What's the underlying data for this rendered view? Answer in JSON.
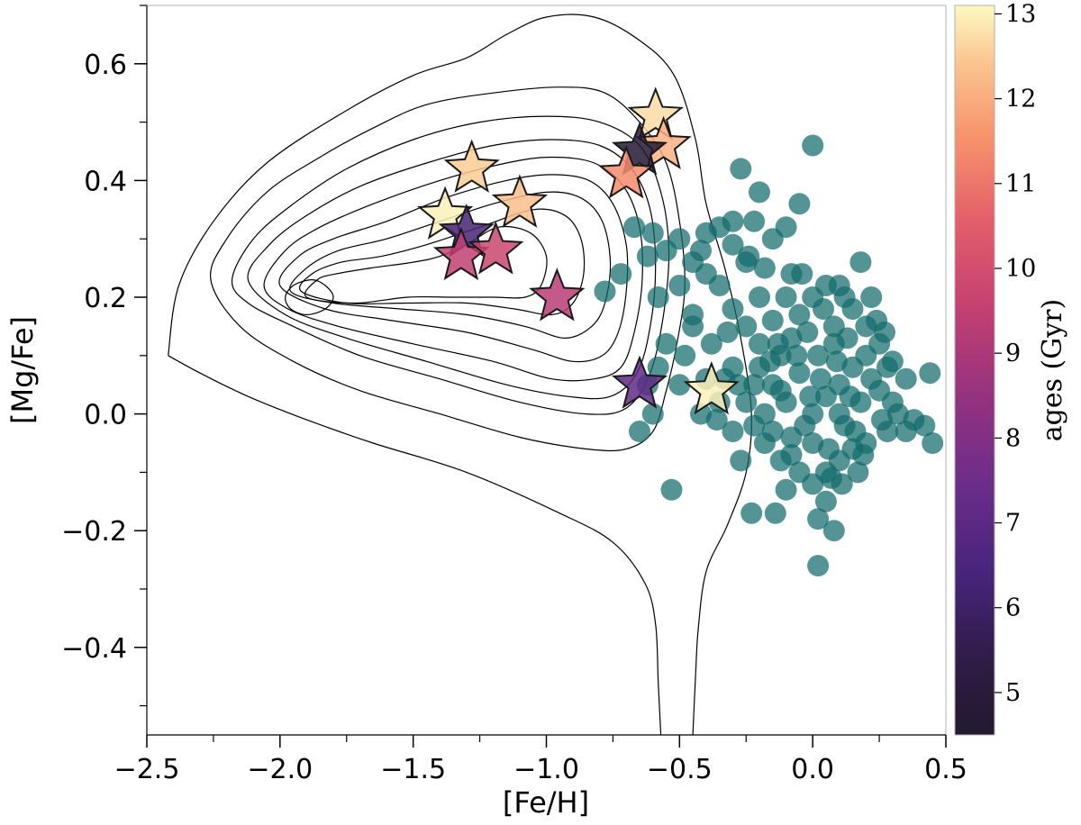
{
  "chart_data": {
    "type": "scatter",
    "xlabel": "[Fe/H]",
    "ylabel": "[Mg/Fe]",
    "xlim": [
      -2.5,
      0.5
    ],
    "ylim": [
      -0.55,
      0.7
    ],
    "x_ticks": [
      -2.5,
      -2.0,
      -1.5,
      -1.0,
      -0.5,
      0.0,
      0.5
    ],
    "x_tick_labels": [
      "−2.5",
      "−2.0",
      "−1.5",
      "−1.0",
      "−0.5",
      "0.0",
      "0.5"
    ],
    "y_ticks": [
      -0.4,
      -0.2,
      0.0,
      0.2,
      0.4,
      0.6
    ],
    "y_tick_labels": [
      "−0.4",
      "−0.2",
      "0.0",
      "0.2",
      "0.4",
      "0.6"
    ],
    "colorbar": {
      "label": "ages (Gyr)",
      "range": [
        4.5,
        13.1
      ],
      "ticks": [
        5,
        6,
        7,
        8,
        9,
        10,
        11,
        12,
        13
      ],
      "tick_labels": [
        "5",
        "6",
        "7",
        "8",
        "9",
        "10",
        "11",
        "12",
        "13"
      ],
      "colormap": "magma"
    },
    "teal_color": "#146b6b",
    "contour_color": "#000000",
    "contours": [
      [
        [
          -2.42,
          0.1
        ],
        [
          -2.38,
          0.22
        ],
        [
          -2.25,
          0.33
        ],
        [
          -2.05,
          0.43
        ],
        [
          -1.75,
          0.52
        ],
        [
          -1.5,
          0.58
        ],
        [
          -1.3,
          0.61
        ],
        [
          -1.15,
          0.65
        ],
        [
          -1.0,
          0.68
        ],
        [
          -0.82,
          0.68
        ],
        [
          -0.65,
          0.64
        ],
        [
          -0.52,
          0.58
        ],
        [
          -0.44,
          0.47
        ],
        [
          -0.4,
          0.36
        ],
        [
          -0.33,
          0.25
        ],
        [
          -0.27,
          0.13
        ],
        [
          -0.23,
          0.0
        ],
        [
          -0.25,
          -0.1
        ],
        [
          -0.32,
          -0.19
        ],
        [
          -0.4,
          -0.27
        ],
        [
          -0.43,
          -0.37
        ],
        [
          -0.44,
          -0.45
        ],
        [
          -0.45,
          -0.55
        ]
      ],
      [
        [
          -0.57,
          -0.55
        ],
        [
          -0.58,
          -0.46
        ],
        [
          -0.59,
          -0.36
        ],
        [
          -0.63,
          -0.29
        ],
        [
          -0.75,
          -0.22
        ],
        [
          -0.95,
          -0.17
        ],
        [
          -1.3,
          -0.1
        ],
        [
          -1.65,
          -0.05
        ],
        [
          -1.9,
          -0.01
        ],
        [
          -2.12,
          0.03
        ],
        [
          -2.3,
          0.07
        ],
        [
          -2.42,
          0.1
        ]
      ],
      [
        [
          -2.26,
          0.23
        ],
        [
          -2.2,
          0.3
        ],
        [
          -2.05,
          0.38
        ],
        [
          -1.85,
          0.44
        ],
        [
          -1.65,
          0.49
        ],
        [
          -1.45,
          0.53
        ],
        [
          -1.2,
          0.55
        ],
        [
          -0.95,
          0.56
        ],
        [
          -0.78,
          0.55
        ],
        [
          -0.65,
          0.5
        ],
        [
          -0.55,
          0.43
        ],
        [
          -0.5,
          0.33
        ],
        [
          -0.48,
          0.22
        ],
        [
          -0.51,
          0.12
        ],
        [
          -0.55,
          0.04
        ],
        [
          -0.6,
          -0.03
        ],
        [
          -0.7,
          -0.06
        ],
        [
          -0.85,
          -0.06
        ],
        [
          -1.1,
          -0.04
        ],
        [
          -1.4,
          0.0
        ],
        [
          -1.7,
          0.04
        ],
        [
          -1.95,
          0.09
        ],
        [
          -2.15,
          0.15
        ],
        [
          -2.26,
          0.23
        ]
      ],
      [
        [
          -2.18,
          0.23
        ],
        [
          -2.1,
          0.3
        ],
        [
          -1.95,
          0.36
        ],
        [
          -1.75,
          0.42
        ],
        [
          -1.5,
          0.47
        ],
        [
          -1.25,
          0.5
        ],
        [
          -1.0,
          0.51
        ],
        [
          -0.8,
          0.5
        ],
        [
          -0.65,
          0.46
        ],
        [
          -0.57,
          0.38
        ],
        [
          -0.54,
          0.28
        ],
        [
          -0.56,
          0.17
        ],
        [
          -0.61,
          0.07
        ],
        [
          -0.7,
          0.01
        ],
        [
          -0.85,
          0.0
        ],
        [
          -1.1,
          0.02
        ],
        [
          -1.4,
          0.06
        ],
        [
          -1.7,
          0.1
        ],
        [
          -1.95,
          0.15
        ],
        [
          -2.12,
          0.19
        ],
        [
          -2.18,
          0.23
        ]
      ],
      [
        [
          -2.12,
          0.23
        ],
        [
          -2.04,
          0.29
        ],
        [
          -1.9,
          0.34
        ],
        [
          -1.7,
          0.39
        ],
        [
          -1.45,
          0.43
        ],
        [
          -1.2,
          0.46
        ],
        [
          -0.98,
          0.47
        ],
        [
          -0.8,
          0.46
        ],
        [
          -0.68,
          0.42
        ],
        [
          -0.61,
          0.35
        ],
        [
          -0.59,
          0.25
        ],
        [
          -0.61,
          0.15
        ],
        [
          -0.66,
          0.07
        ],
        [
          -0.76,
          0.03
        ],
        [
          -0.92,
          0.03
        ],
        [
          -1.15,
          0.05
        ],
        [
          -1.45,
          0.09
        ],
        [
          -1.75,
          0.13
        ],
        [
          -1.98,
          0.17
        ],
        [
          -2.12,
          0.23
        ]
      ],
      [
        [
          -2.06,
          0.22
        ],
        [
          -1.98,
          0.28
        ],
        [
          -1.85,
          0.32
        ],
        [
          -1.65,
          0.36
        ],
        [
          -1.4,
          0.4
        ],
        [
          -1.15,
          0.43
        ],
        [
          -0.98,
          0.44
        ],
        [
          -0.82,
          0.43
        ],
        [
          -0.71,
          0.39
        ],
        [
          -0.65,
          0.32
        ],
        [
          -0.64,
          0.23
        ],
        [
          -0.67,
          0.14
        ],
        [
          -0.72,
          0.08
        ],
        [
          -0.82,
          0.06
        ],
        [
          -0.98,
          0.06
        ],
        [
          -1.2,
          0.09
        ],
        [
          -1.5,
          0.12
        ],
        [
          -1.78,
          0.15
        ],
        [
          -1.97,
          0.18
        ],
        [
          -2.06,
          0.22
        ]
      ],
      [
        [
          -2.0,
          0.22
        ],
        [
          -1.93,
          0.27
        ],
        [
          -1.8,
          0.3
        ],
        [
          -1.6,
          0.33
        ],
        [
          -1.38,
          0.37
        ],
        [
          -1.15,
          0.4
        ],
        [
          -0.98,
          0.41
        ],
        [
          -0.84,
          0.4
        ],
        [
          -0.75,
          0.36
        ],
        [
          -0.7,
          0.29
        ],
        [
          -0.7,
          0.21
        ],
        [
          -0.73,
          0.14
        ],
        [
          -0.79,
          0.1
        ],
        [
          -0.9,
          0.09
        ],
        [
          -1.05,
          0.11
        ],
        [
          -1.3,
          0.14
        ],
        [
          -1.58,
          0.16
        ],
        [
          -1.83,
          0.18
        ],
        [
          -2.0,
          0.22
        ]
      ],
      [
        [
          -1.96,
          0.21
        ],
        [
          -1.9,
          0.25
        ],
        [
          -1.78,
          0.28
        ],
        [
          -1.6,
          0.3
        ],
        [
          -1.4,
          0.33
        ],
        [
          -1.2,
          0.36
        ],
        [
          -1.0,
          0.38
        ],
        [
          -0.87,
          0.37
        ],
        [
          -0.79,
          0.33
        ],
        [
          -0.76,
          0.26
        ],
        [
          -0.78,
          0.19
        ],
        [
          -0.83,
          0.15
        ],
        [
          -0.93,
          0.13
        ],
        [
          -1.08,
          0.15
        ],
        [
          -1.3,
          0.17
        ],
        [
          -1.55,
          0.18
        ],
        [
          -1.8,
          0.19
        ],
        [
          -1.96,
          0.21
        ]
      ],
      [
        [
          -1.92,
          0.21
        ],
        [
          -1.88,
          0.24
        ],
        [
          -1.77,
          0.26
        ],
        [
          -1.62,
          0.27
        ],
        [
          -1.45,
          0.29
        ],
        [
          -1.25,
          0.32
        ],
        [
          -1.05,
          0.35
        ],
        [
          -0.93,
          0.34
        ],
        [
          -0.87,
          0.3
        ],
        [
          -0.86,
          0.24
        ],
        [
          -0.9,
          0.19
        ],
        [
          -0.98,
          0.17
        ],
        [
          -1.12,
          0.18
        ],
        [
          -1.3,
          0.19
        ],
        [
          -1.52,
          0.19
        ],
        [
          -1.75,
          0.19
        ],
        [
          -1.92,
          0.21
        ]
      ],
      [
        [
          -1.9,
          0.2
        ],
        [
          -1.86,
          0.23
        ],
        [
          -1.79,
          0.24
        ],
        [
          -1.66,
          0.25
        ],
        [
          -1.5,
          0.26
        ],
        [
          -1.4,
          0.27
        ],
        [
          -1.3,
          0.29
        ],
        [
          -1.18,
          0.32
        ],
        [
          -1.06,
          0.31
        ],
        [
          -1.0,
          0.27
        ],
        [
          -1.02,
          0.22
        ],
        [
          -1.08,
          0.2
        ],
        [
          -1.2,
          0.2
        ],
        [
          -1.35,
          0.2
        ],
        [
          -1.52,
          0.2
        ],
        [
          -1.72,
          0.19
        ],
        [
          -1.9,
          0.2
        ]
      ],
      [
        [
          -1.98,
          0.2
        ],
        [
          -1.95,
          0.22
        ],
        [
          -1.88,
          0.23
        ],
        [
          -1.83,
          0.22
        ],
        [
          -1.8,
          0.2
        ],
        [
          -1.83,
          0.18
        ],
        [
          -1.9,
          0.17
        ],
        [
          -1.96,
          0.18
        ],
        [
          -1.98,
          0.2
        ]
      ]
    ],
    "scatter_points": [
      [
        0.0,
        0.46
      ],
      [
        -0.27,
        0.42
      ],
      [
        -0.05,
        0.36
      ],
      [
        -0.2,
        0.38
      ],
      [
        -0.3,
        0.33
      ],
      [
        -0.22,
        0.33
      ],
      [
        -0.35,
        0.32
      ],
      [
        -0.1,
        0.32
      ],
      [
        -0.4,
        0.31
      ],
      [
        -0.5,
        0.3
      ],
      [
        -0.6,
        0.31
      ],
      [
        -0.67,
        0.32
      ],
      [
        -0.42,
        0.28
      ],
      [
        -0.3,
        0.29
      ],
      [
        -0.15,
        0.3
      ],
      [
        -0.45,
        0.26
      ],
      [
        -0.55,
        0.28
      ],
      [
        -0.62,
        0.27
      ],
      [
        -0.72,
        0.24
      ],
      [
        -0.78,
        0.21
      ],
      [
        -0.5,
        0.22
      ],
      [
        -0.58,
        0.2
      ],
      [
        -0.4,
        0.24
      ],
      [
        -0.35,
        0.22
      ],
      [
        -0.25,
        0.26
      ],
      [
        -0.18,
        0.25
      ],
      [
        -0.08,
        0.24
      ],
      [
        0.05,
        0.22
      ],
      [
        0.18,
        0.26
      ],
      [
        0.12,
        0.2
      ],
      [
        -0.2,
        0.2
      ],
      [
        -0.3,
        0.18
      ],
      [
        -0.45,
        0.17
      ],
      [
        -0.55,
        0.12
      ],
      [
        -0.48,
        0.1
      ],
      [
        -0.5,
        0.05
      ],
      [
        -0.58,
        0.08
      ],
      [
        -0.62,
        0.05
      ],
      [
        -0.6,
        0.0
      ],
      [
        -0.65,
        -0.03
      ],
      [
        -0.45,
        0.15
      ],
      [
        -0.38,
        0.12
      ],
      [
        -0.32,
        0.14
      ],
      [
        -0.15,
        0.16
      ],
      [
        -0.05,
        0.17
      ],
      [
        0.0,
        0.2
      ],
      [
        0.08,
        0.15
      ],
      [
        0.15,
        0.18
      ],
      [
        0.2,
        0.15
      ],
      [
        0.25,
        0.12
      ],
      [
        0.3,
        0.09
      ],
      [
        0.35,
        0.06
      ],
      [
        0.32,
        0.0
      ],
      [
        0.28,
        -0.03
      ],
      [
        0.38,
        -0.01
      ],
      [
        0.42,
        -0.02
      ],
      [
        0.2,
        -0.05
      ],
      [
        0.15,
        -0.06
      ],
      [
        0.1,
        -0.08
      ],
      [
        0.05,
        -0.1
      ],
      [
        0.0,
        -0.12
      ],
      [
        -0.05,
        -0.1
      ],
      [
        -0.12,
        -0.08
      ],
      [
        -0.18,
        -0.05
      ],
      [
        -0.22,
        -0.02
      ],
      [
        -0.25,
        0.02
      ],
      [
        -0.28,
        0.05
      ],
      [
        -0.3,
        0.08
      ],
      [
        -0.2,
        0.08
      ],
      [
        -0.15,
        0.05
      ],
      [
        -0.1,
        0.02
      ],
      [
        0.0,
        0.0
      ],
      [
        0.05,
        0.03
      ],
      [
        0.1,
        0.05
      ],
      [
        0.15,
        0.08
      ],
      [
        0.2,
        0.1
      ],
      [
        0.25,
        0.04
      ],
      [
        -0.05,
        0.07
      ],
      [
        -0.12,
        0.1
      ],
      [
        -0.08,
        0.13
      ],
      [
        0.02,
        0.1
      ],
      [
        0.08,
        0.12
      ],
      [
        0.18,
        0.02
      ],
      [
        0.12,
        -0.02
      ],
      [
        0.0,
        -0.05
      ],
      [
        -0.08,
        -0.04
      ],
      [
        -0.15,
        -0.03
      ],
      [
        -0.2,
        0.12
      ],
      [
        -0.1,
        -0.13
      ],
      [
        0.05,
        -0.15
      ],
      [
        -0.35,
        0.02
      ],
      [
        -0.4,
        0.06
      ],
      [
        -0.42,
        0.0
      ],
      [
        -0.3,
        -0.03
      ],
      [
        0.02,
        -0.18
      ],
      [
        -0.14,
        -0.17
      ],
      [
        0.02,
        -0.26
      ],
      [
        -0.23,
        -0.17
      ],
      [
        0.08,
        -0.2
      ],
      [
        -0.53,
        -0.13
      ],
      [
        -0.1,
        0.2
      ],
      [
        0.1,
        0.22
      ],
      [
        -0.25,
        0.15
      ],
      [
        0.22,
        0.2
      ],
      [
        0.28,
        0.08
      ],
      [
        0.44,
        0.07
      ],
      [
        0.45,
        -0.05
      ],
      [
        0.35,
        -0.03
      ],
      [
        0.27,
        0.14
      ],
      [
        0.13,
        0.13
      ],
      [
        -0.02,
        0.14
      ],
      [
        -0.18,
        0.0
      ],
      [
        -0.27,
        -0.08
      ],
      [
        0.07,
        -0.11
      ],
      [
        -0.03,
        -0.02
      ],
      [
        0.17,
        -0.1
      ],
      [
        0.1,
        0.0
      ],
      [
        -0.12,
        0.04
      ],
      [
        0.22,
        0.06
      ],
      [
        0.03,
        0.06
      ],
      [
        -0.06,
        0.1
      ],
      [
        -0.22,
        0.05
      ],
      [
        0.14,
        0.03
      ],
      [
        0.3,
        0.02
      ],
      [
        -0.08,
        -0.07
      ],
      [
        0.06,
        -0.06
      ],
      [
        -0.16,
        0.09
      ],
      [
        0.26,
        -0.01
      ],
      [
        -0.01,
        0.03
      ],
      [
        0.16,
        -0.03
      ],
      [
        -0.33,
        0.06
      ],
      [
        -0.36,
        -0.01
      ],
      [
        0.04,
        0.18
      ],
      [
        -0.13,
        0.12
      ],
      [
        0.09,
        0.09
      ],
      [
        0.19,
        -0.07
      ],
      [
        0.24,
        0.16
      ],
      [
        0.11,
        -0.12
      ],
      [
        -0.04,
        0.24
      ],
      [
        -0.24,
        0.27
      ]
    ],
    "stars": [
      {
        "feh": -0.59,
        "mgfe": 0.51,
        "age": 12.7
      },
      {
        "feh": -0.56,
        "mgfe": 0.46,
        "age": 12.1
      },
      {
        "feh": -0.65,
        "mgfe": 0.45,
        "age": 4.6
      },
      {
        "feh": -0.7,
        "mgfe": 0.41,
        "age": 11.4
      },
      {
        "feh": -1.28,
        "mgfe": 0.42,
        "age": 12.5
      },
      {
        "feh": -1.1,
        "mgfe": 0.36,
        "age": 12.3
      },
      {
        "feh": -1.38,
        "mgfe": 0.34,
        "age": 13.0
      },
      {
        "feh": -1.3,
        "mgfe": 0.31,
        "age": 6.3
      },
      {
        "feh": -1.32,
        "mgfe": 0.27,
        "age": 9.5
      },
      {
        "feh": -1.19,
        "mgfe": 0.28,
        "age": 9.7
      },
      {
        "feh": -0.96,
        "mgfe": 0.2,
        "age": 9.3
      },
      {
        "feh": -0.65,
        "mgfe": 0.05,
        "age": 7.1
      },
      {
        "feh": -0.38,
        "mgfe": 0.04,
        "age": 13.0
      }
    ]
  }
}
